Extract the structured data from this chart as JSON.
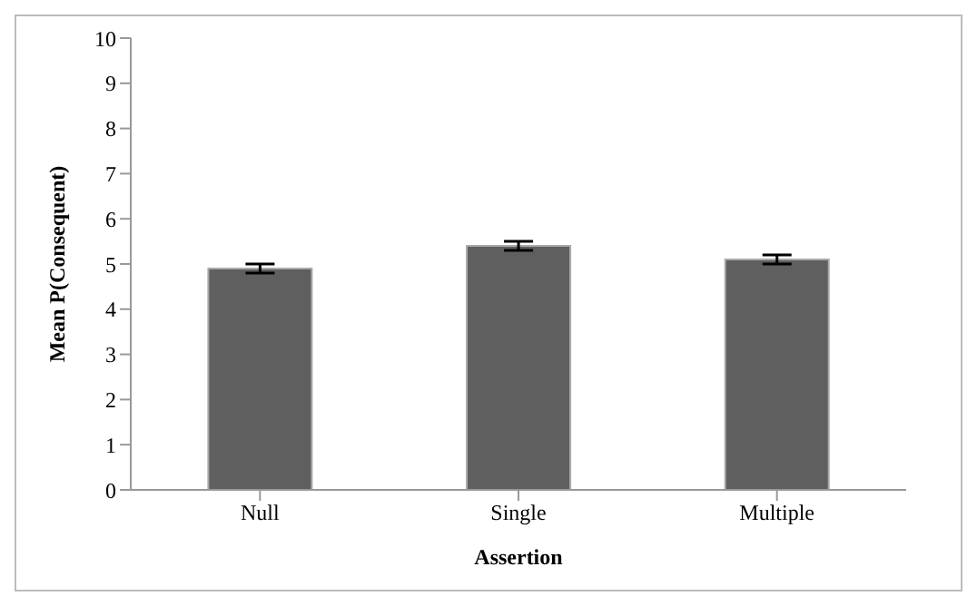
{
  "chart_data": {
    "type": "bar",
    "xlabel": "Assertion",
    "ylabel": "Mean P(Consequent)",
    "categories": [
      "Null",
      "Single",
      "Multiple"
    ],
    "values": [
      4.9,
      5.4,
      5.1
    ],
    "errors": [
      0.1,
      0.1,
      0.1
    ],
    "color": "#5f5f5f",
    "ylim": [
      0,
      10
    ],
    "yticks": [
      0,
      1,
      2,
      3,
      4,
      5,
      6,
      7,
      8,
      9,
      10
    ],
    "grid": false,
    "legend": false
  }
}
